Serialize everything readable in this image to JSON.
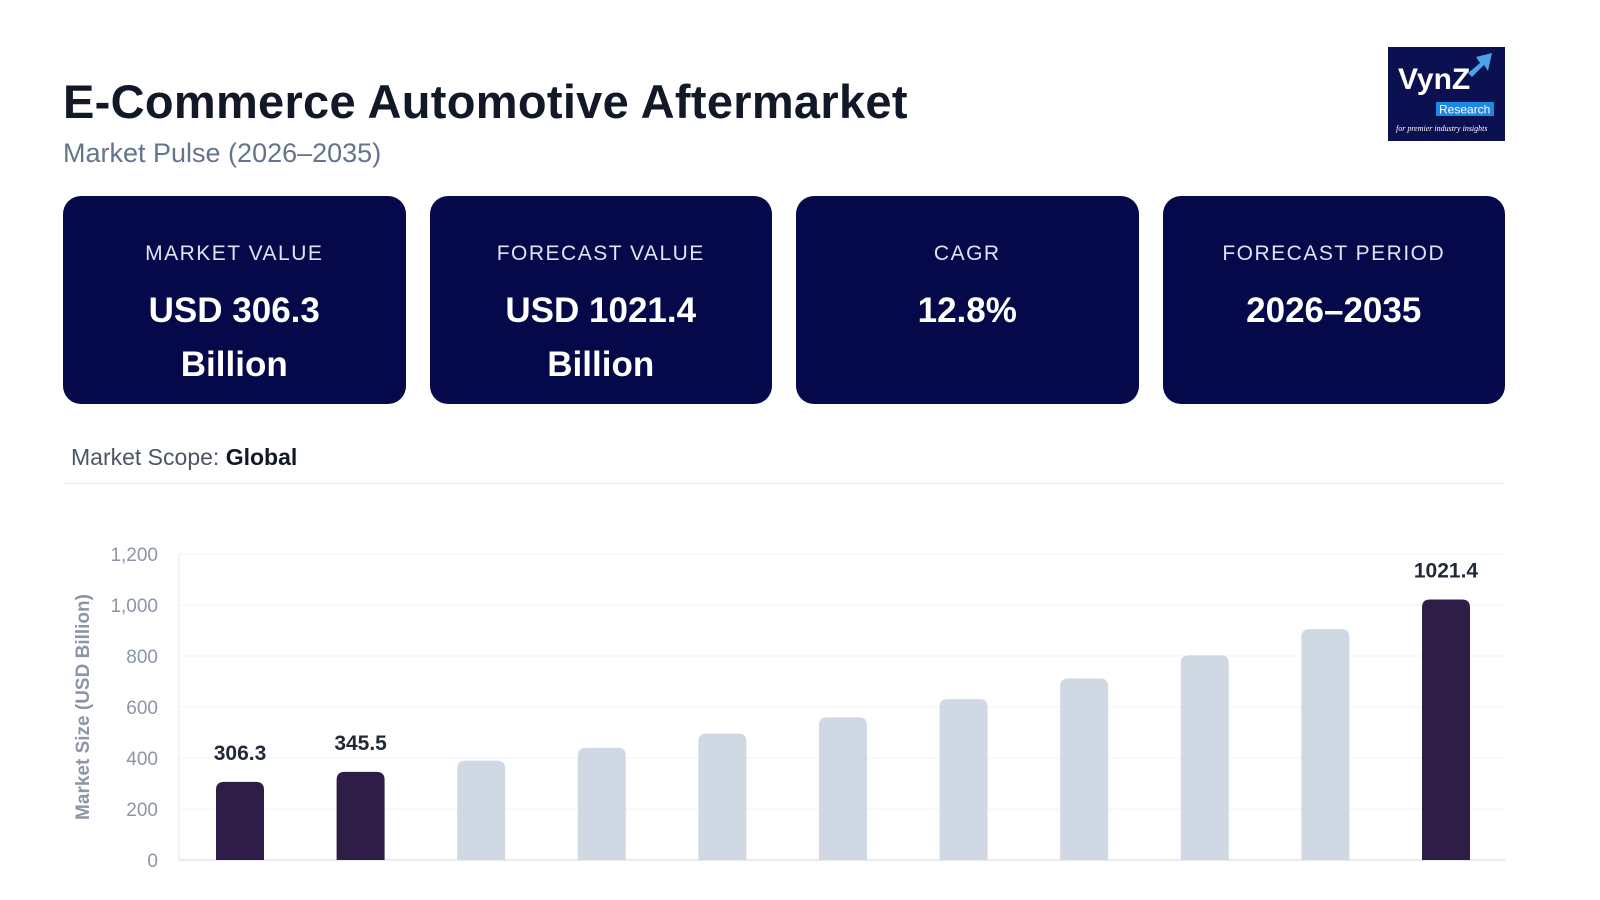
{
  "header": {
    "title": "E-Commerce Automotive Aftermarket",
    "subtitle": "Market Pulse (2026–2035)"
  },
  "logo": {
    "text": "VynZ",
    "badge": "Research",
    "tagline": "for premier industry insights",
    "bg": "#0a1050"
  },
  "cards": [
    {
      "label": "MARKET VALUE",
      "value": "USD 306.3 Billion"
    },
    {
      "label": "FORECAST VALUE",
      "value": "USD 1021.4 Billion"
    },
    {
      "label": "CAGR",
      "value": "12.8%"
    },
    {
      "label": "FORECAST PERIOD",
      "value": "2026–2035"
    }
  ],
  "scope": {
    "label": "Market Scope:",
    "value": "Global"
  },
  "colors": {
    "card_bg": "#05094a",
    "bar_highlight": "#2e1d47",
    "bar_muted": "#cfd8e3"
  },
  "chart_data": {
    "type": "bar",
    "ylabel": "Market Size (USD Billion)",
    "ylim": [
      0,
      1200
    ],
    "yticks": [
      "0",
      "200",
      "400",
      "600",
      "800",
      "1,000",
      "1,200"
    ],
    "grid": true,
    "values": [
      306.3,
      345.5,
      389.7,
      439.6,
      495.9,
      559.4,
      631.0,
      711.7,
      802.8,
      905.6,
      1021.4
    ],
    "highlighted": [
      0,
      1,
      10
    ],
    "data_labels": {
      "0": "306.3",
      "1": "345.5",
      "10": "1021.4"
    }
  }
}
